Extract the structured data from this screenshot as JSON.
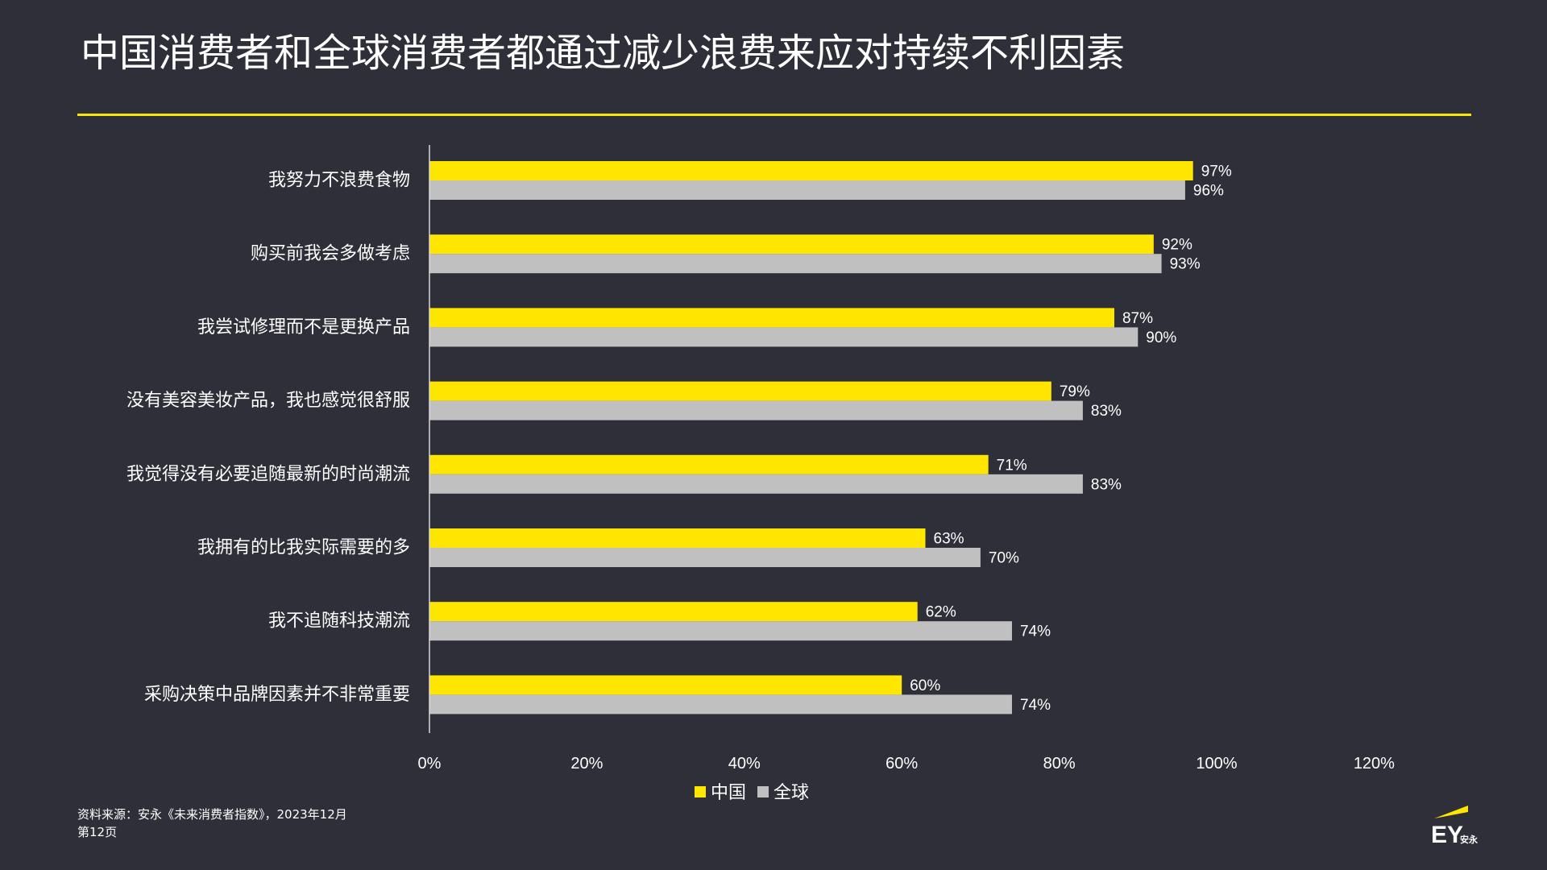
{
  "page": {
    "title": "中国消费者和全球消费者都通过减少浪费来应对持续不利因素",
    "source_line1": "资料来源：安永《未来消费者指数》，2023年12月",
    "source_line2": "第12页",
    "logo_text": "EY",
    "logo_subtext": "安永"
  },
  "colors": {
    "background": "#2e2f38",
    "china": "#ffe600",
    "global": "#c0c0c0",
    "accent": "#ffe600"
  },
  "chart_data": {
    "type": "bar",
    "orientation": "horizontal",
    "title": "",
    "xlabel": "",
    "ylabel": "",
    "categories": [
      "我努力不浪费食物",
      "购买前我会多做考虑",
      "我尝试修理而不是更换产品",
      "没有美容美妆产品，我也感觉很舒服",
      "我觉得没有必要追随最新的时尚潮流",
      "我拥有的比我实际需要的多",
      "我不追随科技潮流",
      "采购决策中品牌因素并不非常重要"
    ],
    "series": [
      {
        "name": "中国",
        "values": [
          97,
          92,
          87,
          79,
          71,
          63,
          62,
          60
        ],
        "labels": [
          "97%",
          "92%",
          "87%",
          "79%",
          "71%",
          "63%",
          "62%",
          "60%"
        ]
      },
      {
        "name": "全球",
        "values": [
          96,
          93,
          90,
          83,
          83,
          70,
          74,
          74
        ],
        "labels": [
          "96%",
          "93%",
          "90%",
          "83%",
          "83%",
          "70%",
          "74%",
          "74%"
        ]
      }
    ],
    "xlim": [
      0,
      120
    ],
    "ticks": [
      0,
      20,
      40,
      60,
      80,
      100,
      120
    ],
    "tick_labels": [
      "0%",
      "20%",
      "40%",
      "60%",
      "80%",
      "100%",
      "120%"
    ],
    "grid": false,
    "legend_position": "bottom"
  }
}
